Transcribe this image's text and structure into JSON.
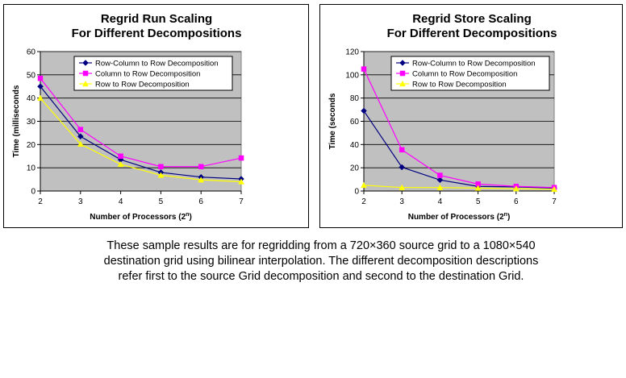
{
  "charts": [
    {
      "id": "run",
      "title_line1": "Regrid Run Scaling",
      "title_line2": "For Different Decompositions",
      "ylabel": "Time (milliseconds",
      "xlabel": "Number of Processors (2",
      "xlabel_sup": "n",
      "xlabel_close": ")"
    },
    {
      "id": "store",
      "title_line1": "Regrid Store Scaling",
      "title_line2": "For Different Decompositions",
      "ylabel": "Time (seconds",
      "xlabel": "Number of Processors (2",
      "xlabel_sup": "n",
      "xlabel_close": ")"
    }
  ],
  "caption": {
    "line1": "These sample results are for regridding from a 720×360 source grid to a 1080×540",
    "line2": "destination grid using bilinear interpolation.  The different decomposition descriptions",
    "line3": "refer first to the source Grid decomposition and second to the destination Grid."
  },
  "chart_data": [
    {
      "type": "line",
      "title": "Regrid Run Scaling For Different Decompositions",
      "xlabel": "Number of Processors (2^n)",
      "ylabel": "Time (milliseconds",
      "x": [
        2,
        3,
        4,
        5,
        6,
        7
      ],
      "ylim": [
        0,
        60
      ],
      "yticks": [
        0,
        10,
        20,
        30,
        40,
        50,
        60
      ],
      "grid": true,
      "legend_position": "top-right",
      "series": [
        {
          "name": "Row-Column to Row Decomposition",
          "color": "#000080",
          "marker": "diamond",
          "values": [
            45,
            23.5,
            13.5,
            8,
            6,
            5.2
          ]
        },
        {
          "name": "Column to Row Decomposition",
          "color": "#ff00ff",
          "marker": "square",
          "values": [
            48.5,
            26.5,
            15,
            10.5,
            10.5,
            14.2
          ]
        },
        {
          "name": "Row to Row Decomposition",
          "color": "#ffff00",
          "marker": "triangle",
          "values": [
            40,
            20.2,
            11.5,
            6.8,
            4.8,
            4
          ]
        }
      ]
    },
    {
      "type": "line",
      "title": "Regrid Store Scaling For Different Decompositions",
      "xlabel": "Number of Processors (2^n)",
      "ylabel": "Time (seconds",
      "x": [
        2,
        3,
        4,
        5,
        6,
        7
      ],
      "ylim": [
        0,
        120
      ],
      "yticks": [
        0,
        20,
        40,
        60,
        80,
        100,
        120
      ],
      "grid": true,
      "legend_position": "top-right",
      "series": [
        {
          "name": "Row-Column to Row Decomposition",
          "color": "#000080",
          "marker": "diamond",
          "values": [
            69,
            20.5,
            9.5,
            4,
            3.5,
            2.5
          ]
        },
        {
          "name": "Column to Row Decomposition",
          "color": "#ff00ff",
          "marker": "square",
          "values": [
            105,
            35.5,
            13.5,
            6,
            4,
            3
          ]
        },
        {
          "name": "Row to Row Decomposition",
          "color": "#ffff00",
          "marker": "triangle",
          "values": [
            5,
            3,
            3,
            2.5,
            2,
            1.5
          ]
        }
      ]
    }
  ]
}
